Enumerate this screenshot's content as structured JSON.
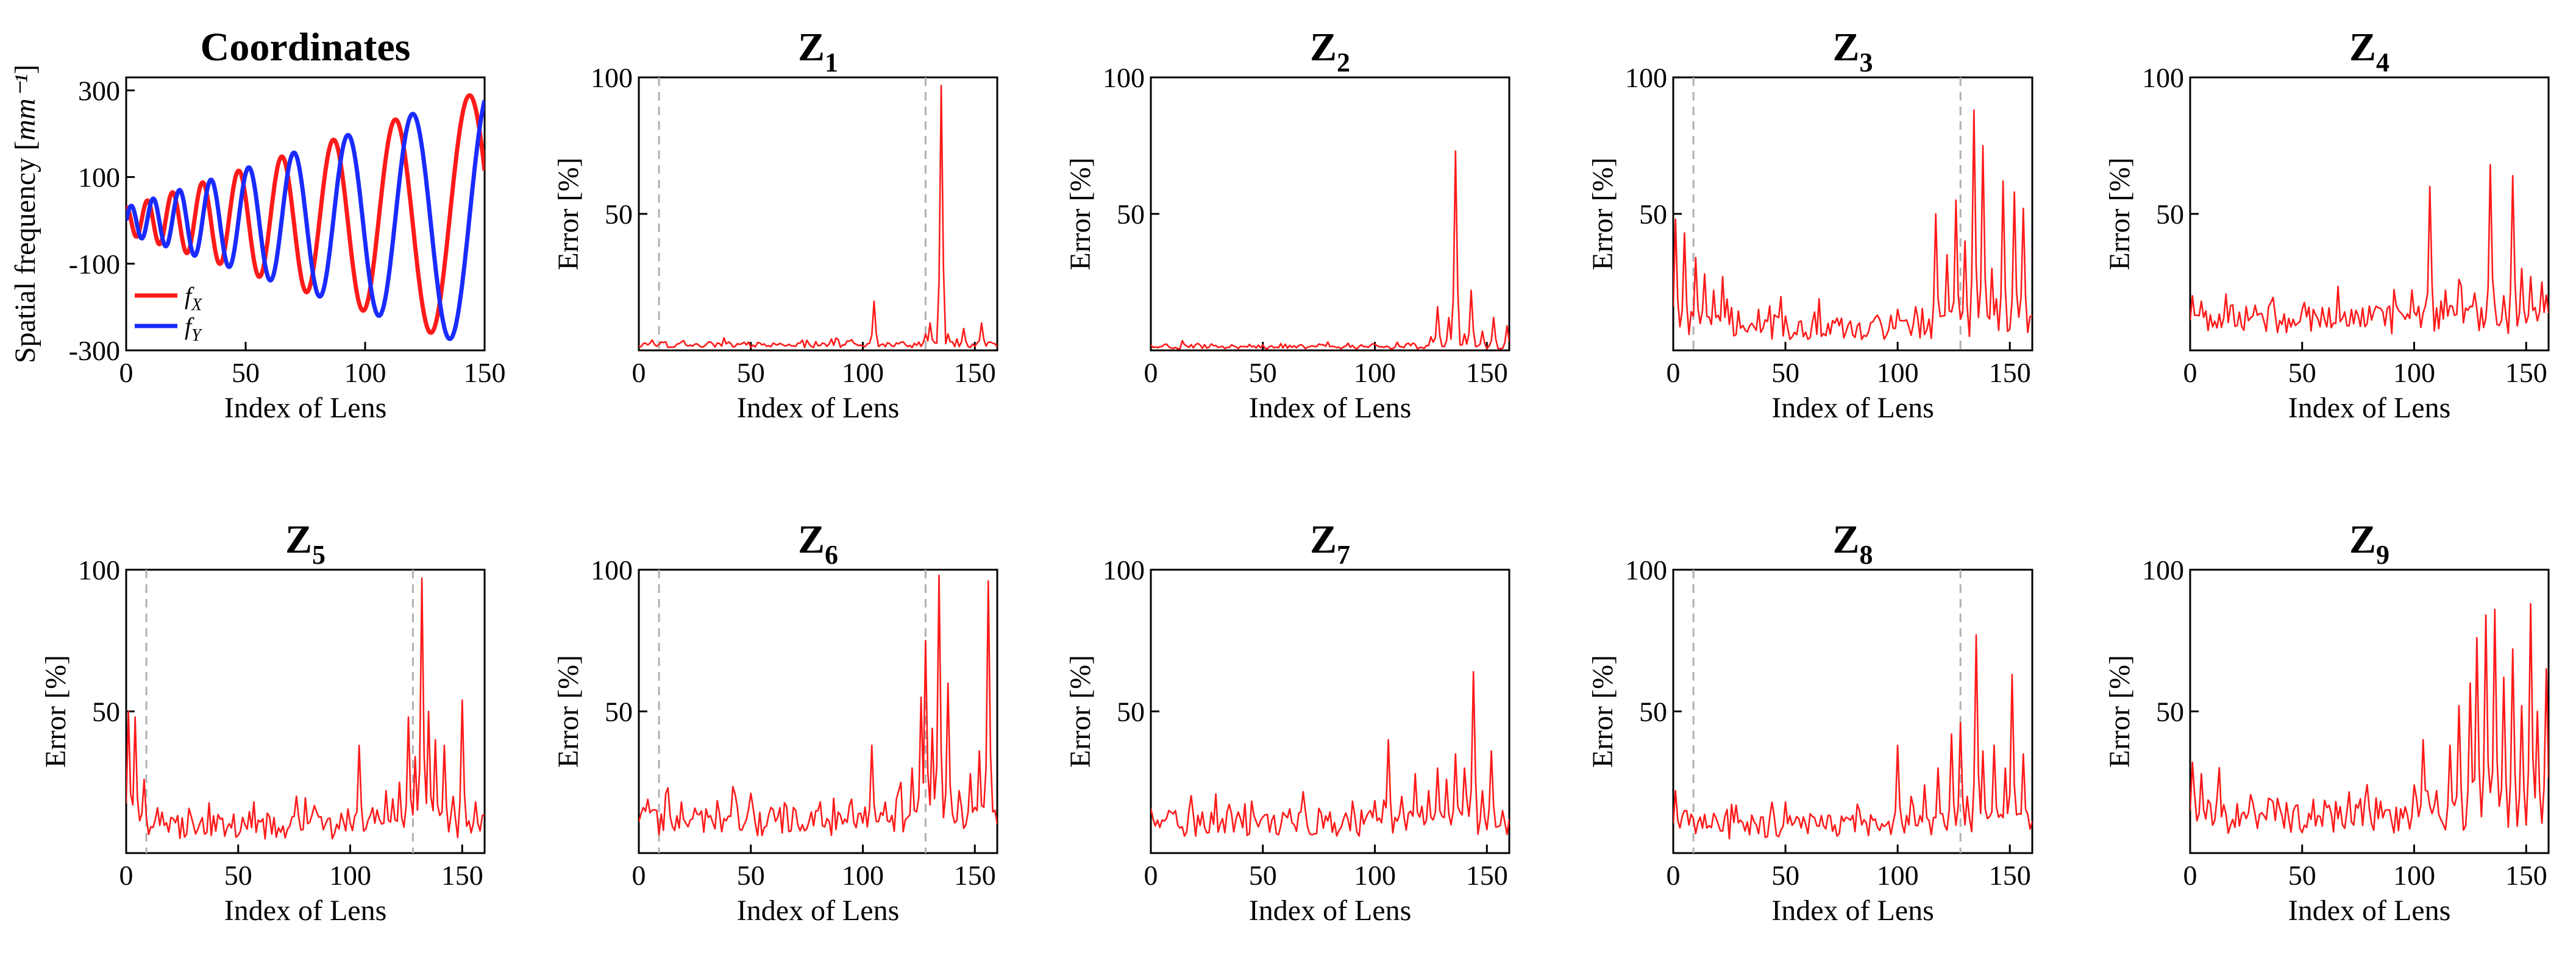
{
  "colors": {
    "error_line": "#ff1a1a",
    "fx": "#ff1a1a",
    "fy": "#1a2bff",
    "guide_line": "#b0b0b0"
  },
  "chart_data": [
    {
      "id": "coordinates",
      "type": "line",
      "title": "Coordinates",
      "xlabel": "Index of Lens",
      "ylabel": "Spatial frequency [mm⁻¹]",
      "xlim": [
        0,
        150
      ],
      "ylim": [
        -300,
        330
      ],
      "xticks": [
        0,
        50,
        100,
        150
      ],
      "yticks": [
        -300,
        -100,
        100,
        300
      ],
      "legend": {
        "placement": "bottom-left",
        "entries": [
          "fX",
          "fY"
        ]
      },
      "series": [
        {
          "name": "fX",
          "color": "#ff1a1a",
          "model": "growing cosine spiral",
          "amplitude_start": 30,
          "amplitude_end": 300,
          "period_start": 8,
          "period_end": 35
        },
        {
          "name": "fY",
          "color": "#1a2bff",
          "model": "growing sine spiral",
          "amplitude_start": 30,
          "amplitude_end": 300,
          "period_start": 8,
          "period_end": 35
        }
      ]
    },
    {
      "id": "z1",
      "type": "line",
      "title": "Z",
      "title_sub": "1",
      "xlabel": "Index of Lens",
      "ylabel": "Error [%]",
      "xlim": [
        0,
        160
      ],
      "ylim": [
        0,
        100
      ],
      "xticks": [
        0,
        50,
        100,
        150
      ],
      "yticks": [
        50,
        100
      ],
      "guides": [
        9,
        128
      ],
      "spikes": [
        [
          105,
          18
        ],
        [
          128,
          6
        ],
        [
          130,
          10
        ],
        [
          135,
          97
        ],
        [
          138,
          6
        ],
        [
          145,
          8
        ],
        [
          153,
          10
        ]
      ],
      "baseline": 1,
      "noise": 1.2
    },
    {
      "id": "z2",
      "type": "line",
      "title": "Z",
      "title_sub": "2",
      "xlabel": "Index of Lens",
      "ylabel": "Error [%]",
      "xlim": [
        0,
        160
      ],
      "ylim": [
        0,
        100
      ],
      "xticks": [
        0,
        50,
        100,
        150
      ],
      "yticks": [
        50,
        100
      ],
      "guides": [],
      "spikes": [
        [
          110,
          3
        ],
        [
          125,
          5
        ],
        [
          128,
          16
        ],
        [
          133,
          12
        ],
        [
          136,
          73
        ],
        [
          140,
          6
        ],
        [
          143,
          22
        ],
        [
          148,
          7
        ],
        [
          153,
          12
        ],
        [
          159,
          9
        ]
      ],
      "baseline": 0.5,
      "noise": 1.0
    },
    {
      "id": "z3",
      "type": "line",
      "title": "Z",
      "title_sub": "3",
      "xlabel": "Index of Lens",
      "ylabel": "Error [%]",
      "xlim": [
        0,
        160
      ],
      "ylim": [
        0,
        100
      ],
      "xticks": [
        0,
        50,
        100,
        150
      ],
      "yticks": [
        50,
        100
      ],
      "guides": [
        9,
        128
      ],
      "spikes": [
        [
          1,
          48
        ],
        [
          5,
          43
        ],
        [
          10,
          34
        ],
        [
          14,
          28
        ],
        [
          18,
          22
        ],
        [
          22,
          27
        ],
        [
          90,
          12
        ],
        [
          100,
          15
        ],
        [
          108,
          16
        ],
        [
          117,
          50
        ],
        [
          122,
          35
        ],
        [
          126,
          55
        ],
        [
          130,
          40
        ],
        [
          134,
          88
        ],
        [
          138,
          75
        ],
        [
          142,
          30
        ],
        [
          147,
          62
        ],
        [
          152,
          58
        ],
        [
          156,
          52
        ]
      ],
      "baseline": 4,
      "noise": 5
    },
    {
      "id": "z4",
      "type": "line",
      "title": "Z",
      "title_sub": "4",
      "xlabel": "Index of Lens",
      "ylabel": "Error [%]",
      "xlim": [
        0,
        160
      ],
      "ylim": [
        0,
        100
      ],
      "xticks": [
        0,
        50,
        100,
        150
      ],
      "yticks": [
        50,
        100
      ],
      "guides": [],
      "spikes": [
        [
          1,
          20
        ],
        [
          5,
          18
        ],
        [
          16,
          14
        ],
        [
          50,
          15
        ],
        [
          56,
          13
        ],
        [
          72,
          12
        ],
        [
          80,
          11
        ],
        [
          92,
          9
        ],
        [
          100,
          14
        ],
        [
          107,
          60
        ],
        [
          114,
          22
        ],
        [
          120,
          26
        ],
        [
          127,
          21
        ],
        [
          134,
          68
        ],
        [
          140,
          20
        ],
        [
          144,
          64
        ],
        [
          148,
          30
        ],
        [
          152,
          27
        ],
        [
          157,
          25
        ]
      ],
      "baseline": 6,
      "noise": 6
    },
    {
      "id": "z5",
      "type": "line",
      "title": "Z",
      "title_sub": "5",
      "xlabel": "Index of Lens",
      "ylabel": "Error [%]",
      "xlim": [
        0,
        160
      ],
      "ylim": [
        0,
        100
      ],
      "xticks": [
        0,
        50,
        100,
        150
      ],
      "yticks": [
        50,
        100
      ],
      "guides": [
        9,
        128
      ],
      "spikes": [
        [
          1,
          50
        ],
        [
          4,
          48
        ],
        [
          8,
          26
        ],
        [
          14,
          16
        ],
        [
          56,
          9
        ],
        [
          82,
          10
        ],
        [
          96,
          14
        ],
        [
          104,
          38
        ],
        [
          110,
          16
        ],
        [
          116,
          22
        ],
        [
          122,
          25
        ],
        [
          126,
          48
        ],
        [
          129,
          34
        ],
        [
          132,
          97
        ],
        [
          135,
          50
        ],
        [
          138,
          40
        ],
        [
          142,
          38
        ],
        [
          146,
          20
        ],
        [
          150,
          54
        ],
        [
          156,
          18
        ]
      ],
      "baseline": 5,
      "noise": 5
    },
    {
      "id": "z6",
      "type": "line",
      "title": "Z",
      "title_sub": "6",
      "xlabel": "Index of Lens",
      "ylabel": "Error [%]",
      "xlim": [
        0,
        160
      ],
      "ylim": [
        0,
        100
      ],
      "xticks": [
        0,
        50,
        100,
        150
      ],
      "yticks": [
        50,
        100
      ],
      "guides": [
        9,
        128
      ],
      "spikes": [
        [
          1,
          14
        ],
        [
          4,
          19
        ],
        [
          13,
          23
        ],
        [
          50,
          11
        ],
        [
          80,
          10
        ],
        [
          92,
          12
        ],
        [
          104,
          38
        ],
        [
          110,
          18
        ],
        [
          116,
          22
        ],
        [
          122,
          30
        ],
        [
          126,
          55
        ],
        [
          128,
          75
        ],
        [
          131,
          44
        ],
        [
          134,
          98
        ],
        [
          138,
          60
        ],
        [
          143,
          22
        ],
        [
          148,
          28
        ],
        [
          152,
          36
        ],
        [
          156,
          96
        ]
      ],
      "baseline": 6,
      "noise": 6
    },
    {
      "id": "z7",
      "type": "line",
      "title": "Z",
      "title_sub": "7",
      "xlabel": "Index of Lens",
      "ylabel": "Error [%]",
      "xlim": [
        0,
        160
      ],
      "ylim": [
        0,
        100
      ],
      "xticks": [
        0,
        50,
        100,
        150
      ],
      "yticks": [
        50,
        100
      ],
      "guides": [],
      "spikes": [
        [
          1,
          12
        ],
        [
          8,
          15
        ],
        [
          18,
          14
        ],
        [
          40,
          10
        ],
        [
          60,
          12
        ],
        [
          86,
          12
        ],
        [
          100,
          18
        ],
        [
          106,
          40
        ],
        [
          112,
          20
        ],
        [
          118,
          28
        ],
        [
          124,
          22
        ],
        [
          128,
          30
        ],
        [
          132,
          26
        ],
        [
          136,
          35
        ],
        [
          140,
          30
        ],
        [
          144,
          64
        ],
        [
          148,
          22
        ],
        [
          152,
          36
        ],
        [
          157,
          15
        ]
      ],
      "baseline": 6,
      "noise": 5
    },
    {
      "id": "z8",
      "type": "line",
      "title": "Z",
      "title_sub": "8",
      "xlabel": "Index of Lens",
      "ylabel": "Error [%]",
      "xlim": [
        0,
        160
      ],
      "ylim": [
        0,
        100
      ],
      "xticks": [
        0,
        50,
        100,
        150
      ],
      "yticks": [
        50,
        100
      ],
      "guides": [
        9,
        128
      ],
      "spikes": [
        [
          1,
          22
        ],
        [
          5,
          15
        ],
        [
          18,
          10
        ],
        [
          50,
          18
        ],
        [
          70,
          8
        ],
        [
          90,
          12
        ],
        [
          100,
          38
        ],
        [
          106,
          20
        ],
        [
          112,
          24
        ],
        [
          118,
          30
        ],
        [
          124,
          42
        ],
        [
          128,
          46
        ],
        [
          131,
          20
        ],
        [
          135,
          77
        ],
        [
          138,
          36
        ],
        [
          143,
          38
        ],
        [
          148,
          30
        ],
        [
          151,
          63
        ],
        [
          156,
          35
        ]
      ],
      "baseline": 5,
      "noise": 5
    },
    {
      "id": "z9",
      "type": "line",
      "title": "Z",
      "title_sub": "9",
      "xlabel": "Index of Lens",
      "ylabel": "Error [%]",
      "xlim": [
        0,
        160
      ],
      "ylim": [
        0,
        100
      ],
      "xticks": [
        0,
        50,
        100,
        150
      ],
      "yticks": [
        50,
        100
      ],
      "guides": [],
      "spikes": [
        [
          1,
          32
        ],
        [
          5,
          28
        ],
        [
          12,
          18
        ],
        [
          60,
          10
        ],
        [
          80,
          8
        ],
        [
          100,
          24
        ],
        [
          104,
          40
        ],
        [
          110,
          22
        ],
        [
          116,
          38
        ],
        [
          120,
          52
        ],
        [
          125,
          60
        ],
        [
          128,
          76
        ],
        [
          132,
          84
        ],
        [
          136,
          86
        ],
        [
          140,
          62
        ],
        [
          144,
          72
        ],
        [
          148,
          52
        ],
        [
          152,
          88
        ],
        [
          155,
          50
        ],
        [
          159,
          65
        ]
      ],
      "baseline": 7,
      "noise": 7
    }
  ]
}
